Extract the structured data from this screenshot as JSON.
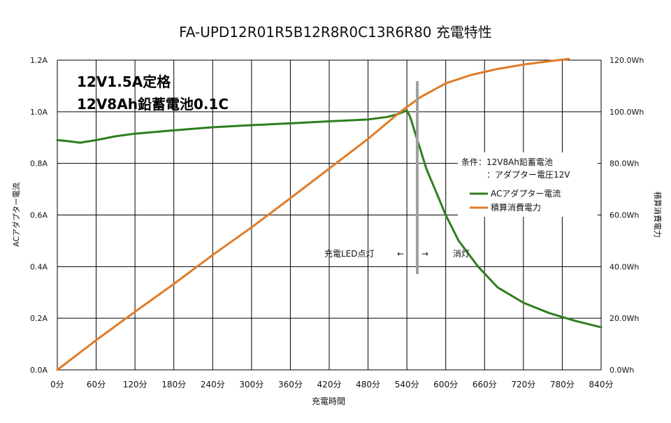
{
  "chart_data": {
    "type": "line",
    "title": "FA-UPD12R01R5B12R8R0C13R6R80 充電特性",
    "xlabel": "充電時間",
    "ylabel_left": "ACアダプター電流",
    "ylabel_right": "積算消費電力",
    "x_ticks": [
      "0分",
      "60分",
      "120分",
      "180分",
      "240分",
      "300分",
      "360分",
      "420分",
      "480分",
      "540分",
      "600分",
      "660分",
      "720分",
      "780分",
      "840分"
    ],
    "y_left_ticks": [
      "0.0A",
      "0.2A",
      "0.4A",
      "0.6A",
      "0.8A",
      "1.0A",
      "1.2A"
    ],
    "y_right_ticks": [
      "0.0Wh",
      "20.0Wh",
      "40.0Wh",
      "60.0Wh",
      "80.0Wh",
      "100.0Wh",
      "120.0Wh"
    ],
    "xlim": [
      0,
      840
    ],
    "ylim_left": [
      0,
      1.2
    ],
    "ylim_right": [
      0,
      120
    ],
    "grid": true,
    "series": [
      {
        "name": "ACアダプター電流",
        "axis": "left",
        "color": "#2e7d1f",
        "x": [
          0,
          20,
          35,
          60,
          90,
          120,
          180,
          240,
          300,
          360,
          420,
          480,
          510,
          525,
          535,
          540,
          545,
          550,
          555,
          560,
          570,
          580,
          600,
          620,
          650,
          680,
          720,
          760,
          800,
          840
        ],
        "y": [
          0.89,
          0.885,
          0.88,
          0.89,
          0.905,
          0.915,
          0.928,
          0.94,
          0.948,
          0.955,
          0.963,
          0.97,
          0.98,
          0.99,
          1.0,
          1.005,
          0.98,
          0.94,
          0.9,
          0.86,
          0.78,
          0.72,
          0.6,
          0.5,
          0.4,
          0.32,
          0.26,
          0.22,
          0.19,
          0.165
        ]
      },
      {
        "name": "積算消費電力",
        "axis": "right",
        "color": "#e07b27",
        "x": [
          0,
          60,
          120,
          180,
          240,
          300,
          360,
          420,
          480,
          530,
          560,
          600,
          640,
          680,
          720,
          760,
          790
        ],
        "y": [
          0,
          11.5,
          22.5,
          33.3,
          44.5,
          55.2,
          66.5,
          78,
          89.5,
          100,
          105.5,
          111,
          114.3,
          116.6,
          118.3,
          119.6,
          120.5
        ]
      }
    ],
    "annotations": {
      "spec_line1": "12V1.5A定格",
      "spec_line2": "12V8Ah鉛蓄電池0.1C",
      "condition_line1": "条件：12V8Ah鉛蓄電池",
      "condition_line2": "：アダプター電圧12V",
      "led_on": "充電LED点灯",
      "arrow_left": "←",
      "arrow_right": "→",
      "led_off": "消灯",
      "marker_x": 556
    },
    "colors": {
      "grid": "#000000",
      "marker": "#a0a0a0"
    }
  }
}
